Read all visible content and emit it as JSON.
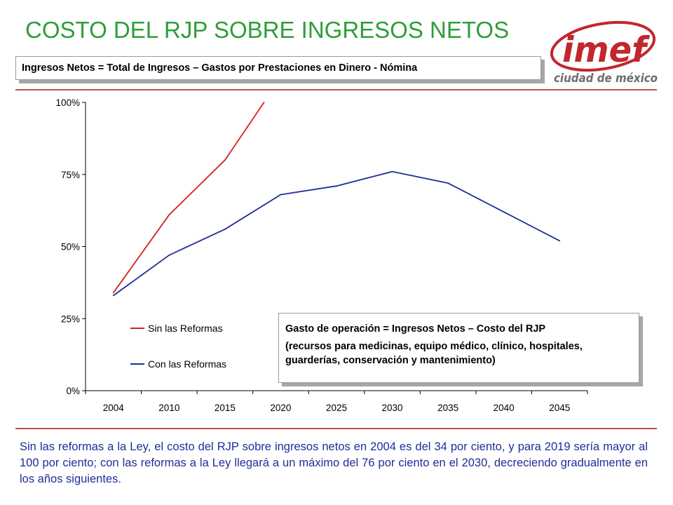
{
  "slide": {
    "title": "COSTO DEL RJP SOBRE INGRESOS NETOS",
    "formula": "Ingresos Netos = Total de Ingresos – Gastos por Prestaciones en Dinero - Nómina",
    "gasto_line1": "Gasto de operación =  Ingresos Netos – Costo del RJP",
    "gasto_line2": "(recursos para medicinas, equipo médico, clínico, hospitales, guarderías, conservación y mantenimiento)",
    "footer": "Sin las reformas a la Ley, el costo del RJP sobre ingresos netos en 2004 es del 34 por ciento, y para 2019 sería mayor al 100 por ciento; con las reformas a la Ley llegará a un máximo del 76 por ciento en el 2030, decreciendo gradualmente en los años siguientes.",
    "logo_main": "imef",
    "logo_sub": "ciudad de méxico"
  },
  "colors": {
    "title": "#2e9e3a",
    "sin_reformas": "#d42020",
    "con_reformas": "#1f2d9a",
    "rule": "#c0504d",
    "logo_red": "#c1272d",
    "logo_gray": "#6d6e71"
  },
  "chart_data": {
    "type": "line",
    "categories": [
      "2004",
      "2010",
      "2015",
      "2020",
      "2025",
      "2030",
      "2035",
      "2040",
      "2045"
    ],
    "y_ticks": [
      "0%",
      "25%",
      "50%",
      "75%",
      "100%"
    ],
    "ylim": [
      0,
      100
    ],
    "legend_position": "inside-lower-left",
    "series": [
      {
        "name": "Sin las Reformas",
        "color": "#d42020",
        "points": [
          {
            "x": 0,
            "y": 34
          },
          {
            "x": 1,
            "y": 61
          },
          {
            "x": 2,
            "y": 80
          },
          {
            "x": 2.7,
            "y": 100
          }
        ]
      },
      {
        "name": "Con las Reformas",
        "color": "#1f2d9a",
        "points": [
          {
            "x": 0,
            "y": 33
          },
          {
            "x": 1,
            "y": 47
          },
          {
            "x": 2,
            "y": 56
          },
          {
            "x": 3,
            "y": 68
          },
          {
            "x": 4,
            "y": 71
          },
          {
            "x": 5,
            "y": 76
          },
          {
            "x": 6,
            "y": 72
          },
          {
            "x": 7,
            "y": 62
          },
          {
            "x": 8,
            "y": 52
          }
        ]
      }
    ]
  }
}
